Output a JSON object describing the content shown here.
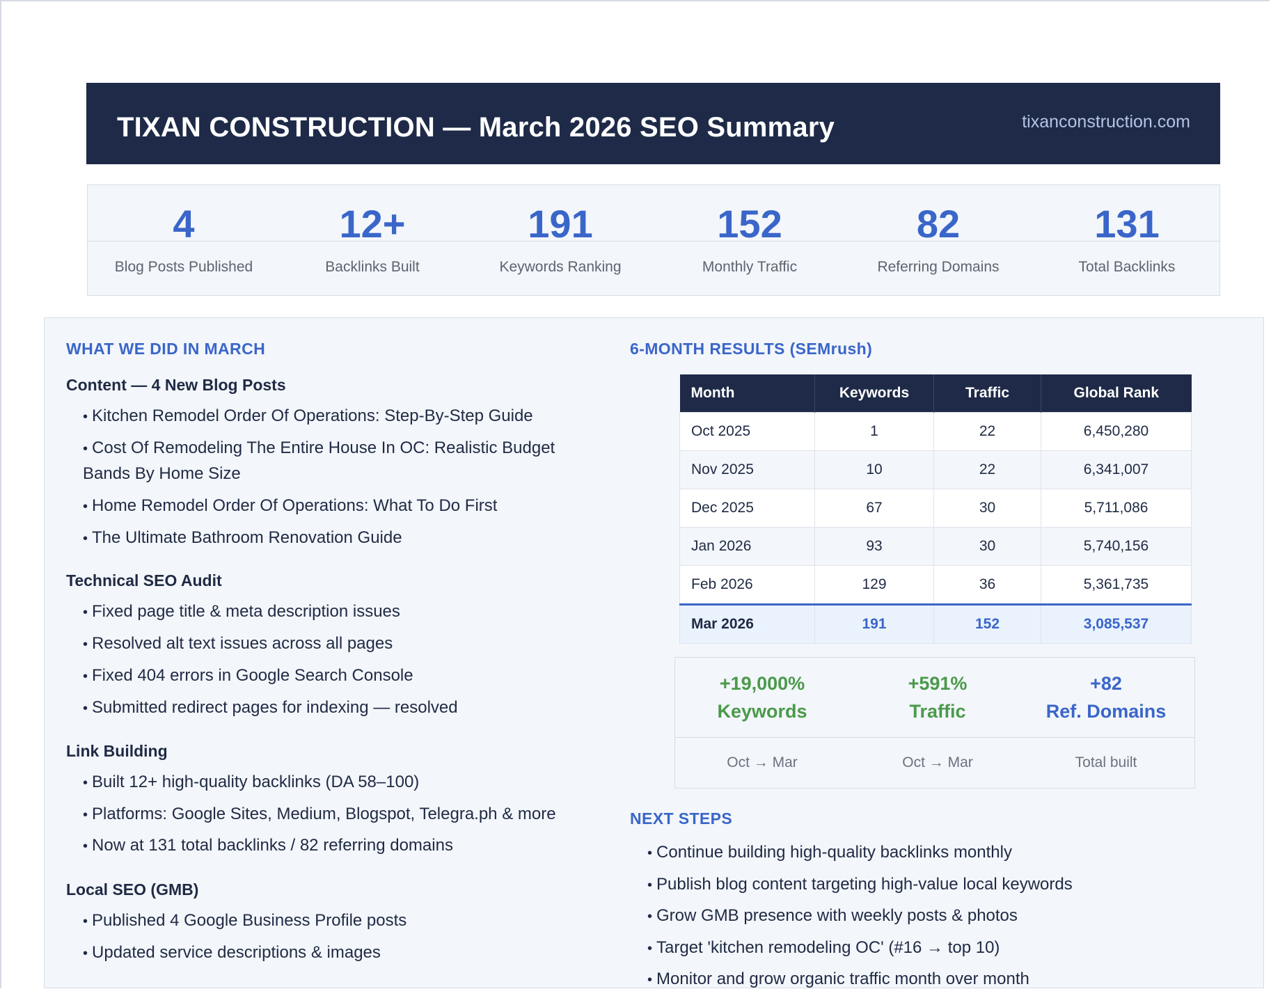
{
  "header": {
    "title": "TIXAN CONSTRUCTION — March 2026 SEO Summary",
    "domain": "tixanconstruction.com"
  },
  "stats": [
    {
      "value": "4",
      "label": "Blog Posts Published"
    },
    {
      "value": "12+",
      "label": "Backlinks Built"
    },
    {
      "value": "191",
      "label": "Keywords Ranking"
    },
    {
      "value": "152",
      "label": "Monthly Traffic"
    },
    {
      "value": "82",
      "label": "Referring Domains"
    },
    {
      "value": "131",
      "label": "Total Backlinks"
    }
  ],
  "what_we_did": {
    "heading": "WHAT WE DID IN MARCH",
    "content": {
      "title": "Content — 4 New Blog Posts",
      "items": [
        "Kitchen Remodel Order Of Operations: Step-By-Step Guide",
        "Cost Of Remodeling The Entire House In OC: Realistic Budget Bands By Home Size",
        "Home Remodel Order Of Operations: What To Do First",
        "The Ultimate Bathroom Renovation Guide"
      ]
    },
    "technical": {
      "title": "Technical SEO Audit",
      "items": [
        "Fixed page title & meta description issues",
        "Resolved alt text issues across all pages",
        "Fixed 404 errors in Google Search Console",
        "Submitted redirect pages for indexing — resolved"
      ]
    },
    "links": {
      "title": "Link Building",
      "items": [
        "Built 12+ high-quality backlinks (DA 58–100)",
        "Platforms: Google Sites, Medium, Blogspot, Telegra.ph & more",
        "Now at 131 total backlinks / 82 referring domains"
      ]
    },
    "local": {
      "title": "Local SEO (GMB)",
      "items": [
        "Published 4 Google Business Profile posts",
        "Updated service descriptions & images"
      ]
    }
  },
  "results": {
    "heading": "6-MONTH RESULTS (SEMrush)",
    "columns": [
      "Month",
      "Keywords",
      "Traffic",
      "Global Rank"
    ],
    "rows": [
      [
        "Oct 2025",
        "1",
        "22",
        "6,450,280"
      ],
      [
        "Nov 2025",
        "10",
        "22",
        "6,341,007"
      ],
      [
        "Dec 2025",
        "67",
        "30",
        "5,711,086"
      ],
      [
        "Jan 2026",
        "93",
        "30",
        "5,740,156"
      ],
      [
        "Feb 2026",
        "129",
        "36",
        "5,361,735"
      ],
      [
        "Mar 2026",
        "191",
        "152",
        "3,085,537"
      ]
    ]
  },
  "growth": [
    {
      "value": "+19,000%",
      "label": "Keywords",
      "note": "Oct → Mar",
      "color": "#4a9a4a"
    },
    {
      "value": "+591%",
      "label": "Traffic",
      "note": "Oct → Mar",
      "color": "#4a9a4a"
    },
    {
      "value": "+82",
      "label": "Ref. Domains",
      "note": "Total built",
      "color": "#3a66c9"
    }
  ],
  "next_steps": {
    "heading": "NEXT STEPS",
    "items": [
      "Continue building high-quality backlinks monthly",
      "Publish blog content targeting high-value local keywords",
      "Grow GMB presence with weekly posts & photos",
      "Target 'kitchen remodeling OC' (#16 → top 10)",
      "Monitor and grow organic traffic month over month"
    ]
  }
}
